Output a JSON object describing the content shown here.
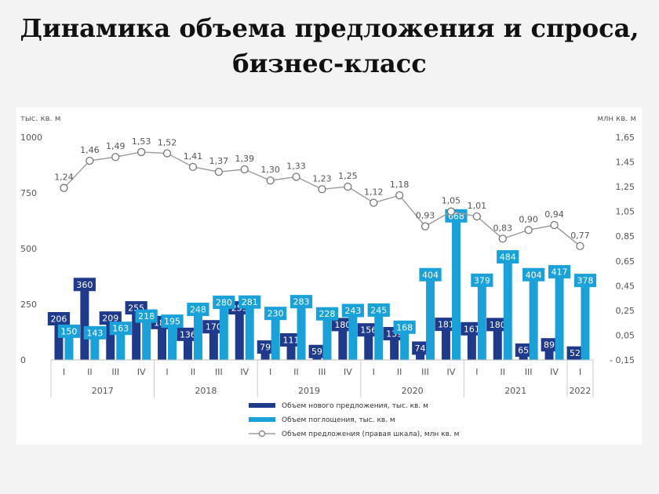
{
  "title": {
    "line1": "Динамика объема предложения и спроса,",
    "line2": "бизнес-класс"
  },
  "chart_data": {
    "type": "bar",
    "left_unit": "тыс. кв. м",
    "right_unit": "млн кв. м",
    "left_axis": {
      "min": 0,
      "max": 1000,
      "ticks": [
        "0",
        "250",
        "500",
        "750",
        "1000"
      ]
    },
    "right_axis": {
      "min": -0.15,
      "max": 1.65,
      "ticks": [
        "- 0,15",
        "0,05",
        "0,25",
        "0,45",
        "0,65",
        "0,85",
        "1,05",
        "1,25",
        "1,45",
        "1,65"
      ]
    },
    "quarters": [
      "I",
      "II",
      "III",
      "IV",
      "I",
      "II",
      "III",
      "IV",
      "I",
      "II",
      "III",
      "IV",
      "I",
      "II",
      "III",
      "IV",
      "I",
      "II",
      "III",
      "IV",
      "I"
    ],
    "years": [
      {
        "label": "2017",
        "count": 4
      },
      {
        "label": "2018",
        "count": 4
      },
      {
        "label": "2019",
        "count": 4
      },
      {
        "label": "2020",
        "count": 4
      },
      {
        "label": "2021",
        "count": 4
      },
      {
        "label": "2022",
        "count": 1
      }
    ],
    "series": [
      {
        "name": "Объем нового предложения, тыс. кв. м",
        "type": "bar",
        "axis": "left",
        "color": "#1f3a8a",
        "values": [
          206,
          360,
          209,
          255,
          189,
          136,
          170,
          255,
          79,
          111,
          59,
          180,
          156,
          139,
          74,
          181,
          161,
          180,
          65,
          89,
          52
        ],
        "labels": [
          "206",
          "360",
          "209",
          "255",
          "189",
          "136",
          "170",
          "255",
          "79",
          "111",
          "59",
          "180",
          "156",
          "139",
          "74",
          "181",
          "161",
          "180",
          "65",
          "89",
          "52"
        ]
      },
      {
        "name": "Объем поглощения, тыс. кв. м",
        "type": "bar",
        "axis": "left",
        "color": "#1aa1d8",
        "values": [
          150,
          143,
          163,
          218,
          195,
          248,
          280,
          281,
          230,
          283,
          228,
          243,
          245,
          168,
          404,
          668,
          379,
          484,
          404,
          417,
          378
        ],
        "labels": [
          "150",
          "143",
          "163",
          "218",
          "195",
          "248",
          "280",
          "281",
          "230",
          "283",
          "228",
          "243",
          "245",
          "168",
          "404",
          "668",
          "379",
          "484",
          "404",
          "417",
          "378"
        ]
      },
      {
        "name": "Объем предложения (правая шкала), млн кв. м",
        "type": "line",
        "axis": "right",
        "color": "#9a9a9a",
        "values": [
          1.24,
          1.46,
          1.49,
          1.53,
          1.52,
          1.41,
          1.37,
          1.39,
          1.3,
          1.33,
          1.23,
          1.25,
          1.12,
          1.18,
          0.93,
          1.05,
          1.01,
          0.83,
          0.9,
          0.94,
          0.77
        ],
        "labels": [
          "1,24",
          "1,46",
          "1,49",
          "1,53",
          "1,52",
          "1,41",
          "1,37",
          "1,39",
          "1,30",
          "1,33",
          "1,23",
          "1,25",
          "1,12",
          "1,18",
          "0,93",
          "1,05",
          "1,01",
          "0,83",
          "0,90",
          "0,94",
          "0,77"
        ]
      }
    ],
    "legend_position": "bottom",
    "grid": false
  }
}
